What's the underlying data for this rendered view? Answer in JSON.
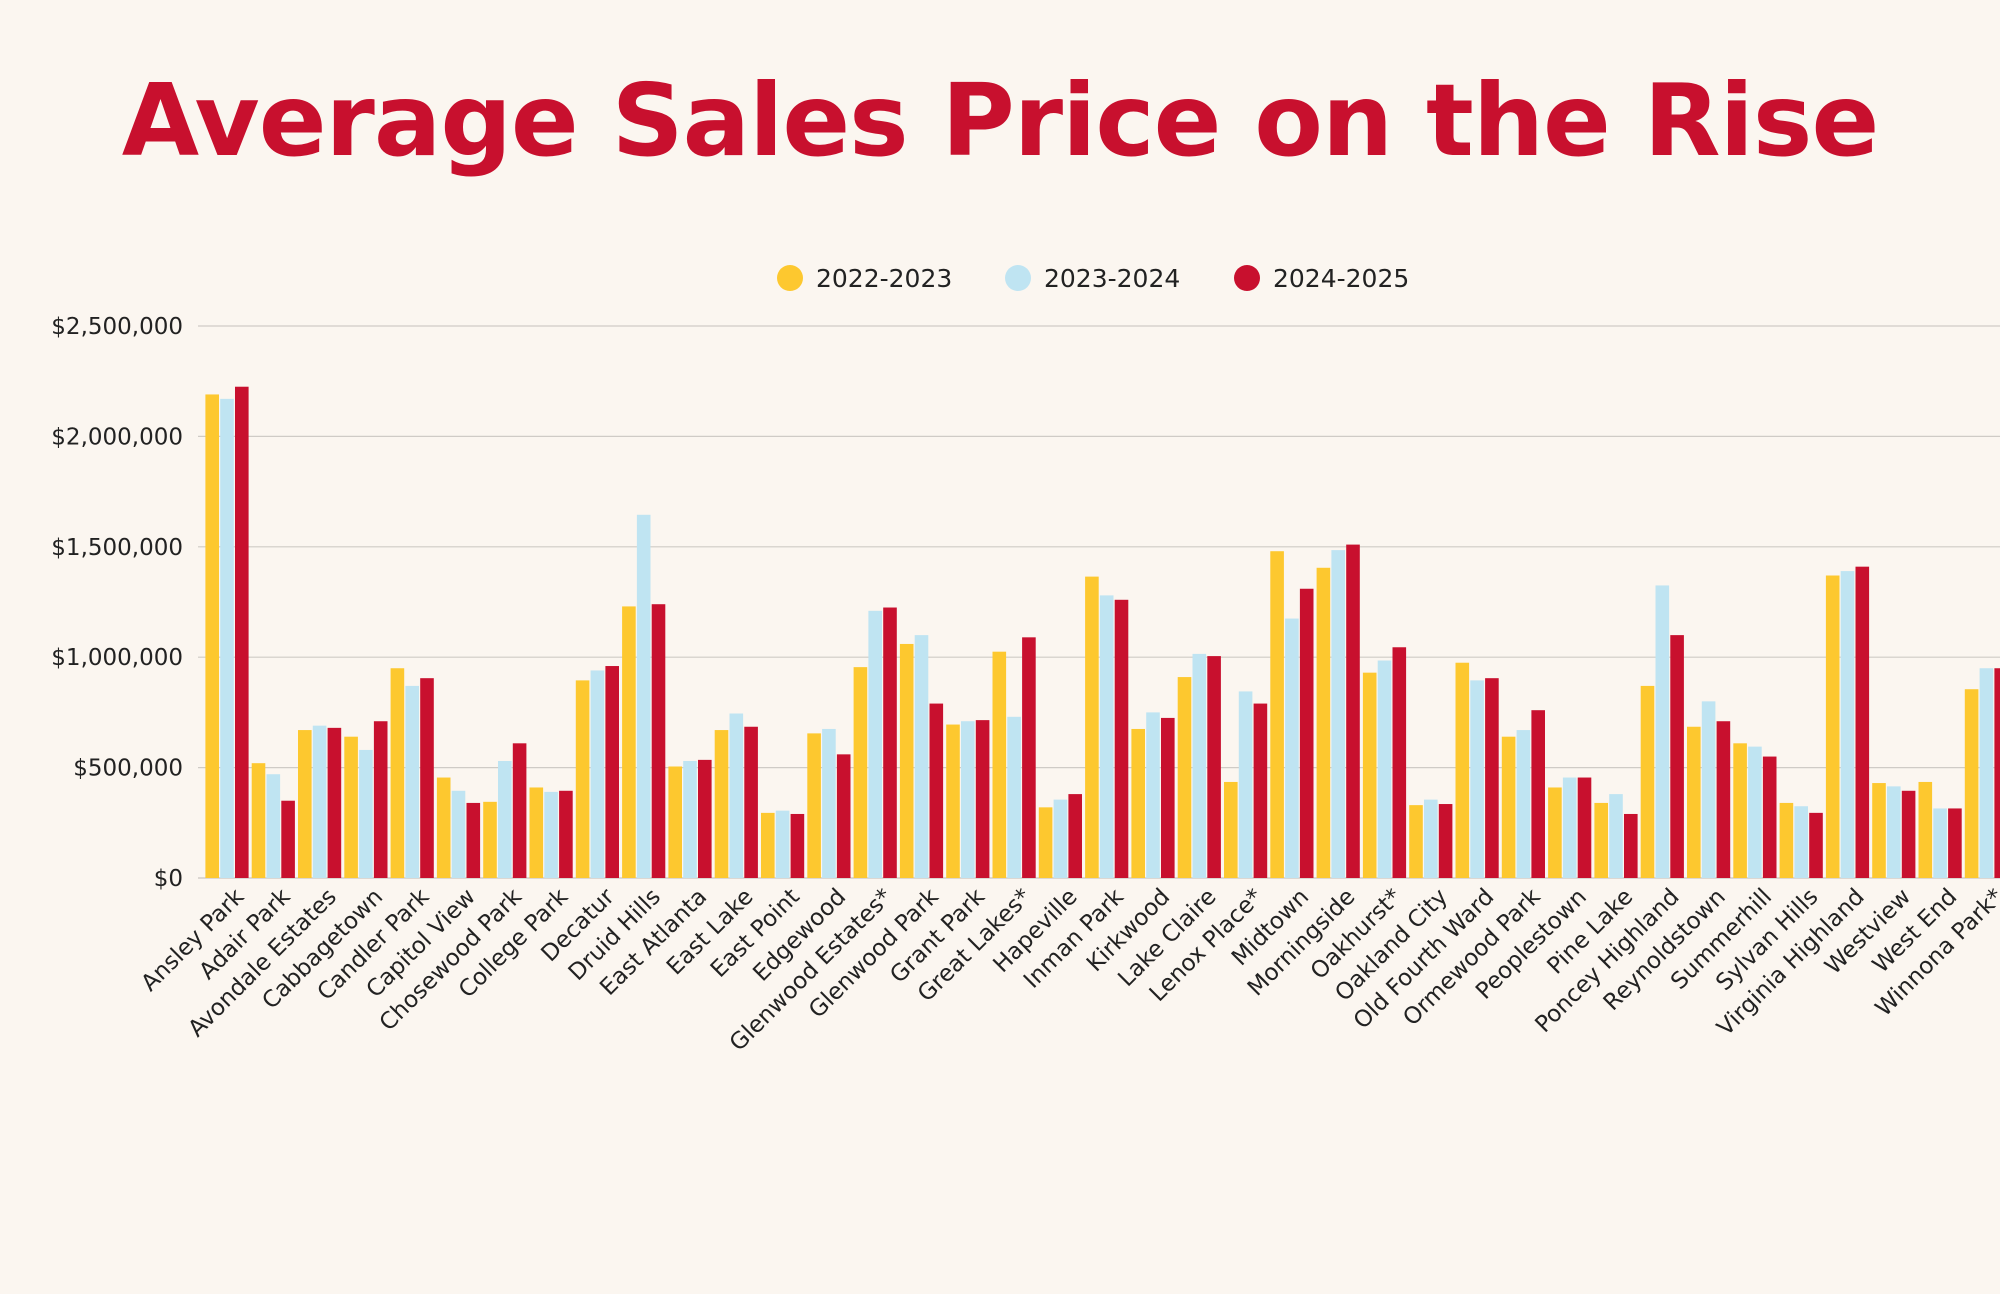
{
  "title": "Average Sales Price on the Rise",
  "colors": {
    "background": "#FBF6F0",
    "title": "#C8102E",
    "gridline": "#CFCBC6",
    "series": [
      "#FDC82F",
      "#BFE4F2",
      "#C8102E"
    ]
  },
  "chart_data": {
    "type": "bar",
    "title": "Average Sales Price on the Rise",
    "xlabel": "",
    "ylabel": "",
    "ylim": [
      0,
      2500000
    ],
    "yticks": [
      0,
      500000,
      1000000,
      1500000,
      2000000,
      2500000
    ],
    "ytick_labels": [
      "$0",
      "$500,000",
      "$1,000,000",
      "$1,500,000",
      "$2,000,000",
      "$2,500,000"
    ],
    "grid": true,
    "legend_position": "top-center",
    "categories": [
      "Ansley Park",
      "Adair Park",
      "Avondale Estates",
      "Cabbagetown",
      "Candler Park",
      "Capitol View",
      "Chosewood Park",
      "College Park",
      "Decatur",
      "Druid Hills",
      "East Atlanta",
      "East Lake",
      "East Point",
      "Edgewood",
      "Glenwood Estates*",
      "Glenwood Park",
      "Grant Park",
      "Great Lakes*",
      "Hapeville",
      "Inman Park",
      "Kirkwood",
      "Lake Claire",
      "Lenox Place*",
      "Midtown",
      "Morningside",
      "Oakhurst*",
      "Oakland City",
      "Old Fourth Ward",
      "Ormewood Park",
      "Peoplestown",
      "Pine Lake",
      "Poncey Highland",
      "Reynoldstown",
      "Summerhill",
      "Sylvan Hills",
      "Virginia Highland",
      "Westview",
      "West End",
      "Winnona Park*"
    ],
    "series": [
      {
        "name": "2022-2023",
        "values": [
          2190000,
          520000,
          670000,
          640000,
          950000,
          455000,
          345000,
          410000,
          895000,
          1230000,
          505000,
          670000,
          295000,
          655000,
          955000,
          1060000,
          695000,
          1025000,
          320000,
          1365000,
          675000,
          910000,
          435000,
          1480000,
          1405000,
          930000,
          330000,
          975000,
          640000,
          410000,
          340000,
          870000,
          685000,
          610000,
          340000,
          1370000,
          430000,
          435000,
          855000
        ]
      },
      {
        "name": "2023-2024",
        "values": [
          2170000,
          470000,
          690000,
          580000,
          870000,
          395000,
          530000,
          390000,
          940000,
          1645000,
          530000,
          745000,
          305000,
          675000,
          1210000,
          1100000,
          710000,
          730000,
          355000,
          1280000,
          750000,
          1015000,
          845000,
          1175000,
          1485000,
          985000,
          355000,
          895000,
          670000,
          455000,
          380000,
          1325000,
          800000,
          595000,
          325000,
          1390000,
          415000,
          315000,
          950000
        ]
      },
      {
        "name": "2024-2025",
        "values": [
          2225000,
          350000,
          680000,
          710000,
          905000,
          340000,
          610000,
          395000,
          960000,
          1240000,
          535000,
          685000,
          290000,
          560000,
          1225000,
          790000,
          715000,
          1090000,
          380000,
          1260000,
          725000,
          1005000,
          790000,
          1310000,
          1510000,
          1045000,
          335000,
          905000,
          760000,
          455000,
          290000,
          1100000,
          710000,
          550000,
          295000,
          1410000,
          395000,
          315000,
          950000
        ]
      }
    ]
  }
}
